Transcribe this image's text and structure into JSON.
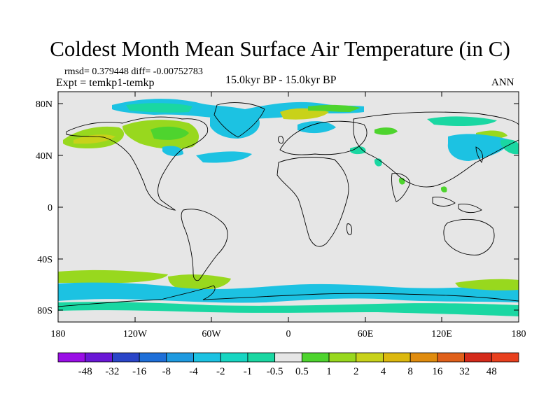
{
  "title": "Coldest Month Mean Surface Air Temperature (in C)",
  "stats": "rmsd= 0.379448  diff= -0.00752783",
  "experiment": "Expt = temkp1-temkp",
  "period": "15.0kyr BP - 15.0kyr BP",
  "season": "ANN",
  "lat_ticks": [
    "80N",
    "40N",
    "0",
    "40S",
    "80S"
  ],
  "lon_ticks": [
    "180",
    "120W",
    "60W",
    "0",
    "60E",
    "120E",
    "180"
  ],
  "colorbar": {
    "labels": [
      "-48",
      "-32",
      "-16",
      "-8",
      "-4",
      "-2",
      "-1",
      "-0.5",
      "0.5",
      "1",
      "2",
      "4",
      "8",
      "16",
      "32",
      "48"
    ],
    "colors": [
      "#9a0ee6",
      "#6a17d6",
      "#2a45c8",
      "#1e6fd8",
      "#1e9ae0",
      "#1cc2e2",
      "#17d6c2",
      "#1ad7a2",
      "#e6e6e6",
      "#4ed42e",
      "#98d81e",
      "#c8d21a",
      "#dcb80e",
      "#e08c0e",
      "#e0601a",
      "#d42a1a",
      "#e8401e"
    ]
  },
  "map": {
    "background": "#e6e6e6",
    "land_outline": "#000000",
    "region_colors": {
      "cyan": "#1cc2e2",
      "teal": "#1ad7a2",
      "green": "#98d81e",
      "lightgreen": "#4ed42e"
    }
  }
}
